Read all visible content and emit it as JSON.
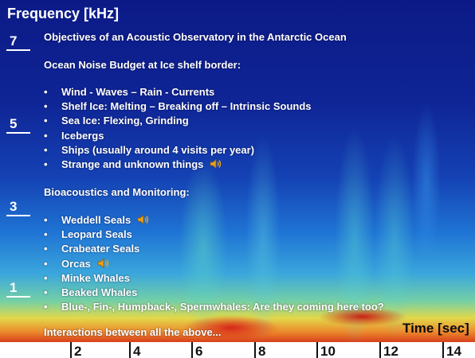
{
  "axes": {
    "y_title": "Frequency [kHz]",
    "y_ticks": [
      "7",
      "5",
      "3",
      "1"
    ],
    "x_title": "Time [sec]",
    "x_ticks": [
      "2",
      "4",
      "6",
      "8",
      "10",
      "12",
      "14"
    ]
  },
  "content": {
    "heading": "Objectives of an Acoustic Observatory in the Antarctic Ocean",
    "noise_heading": "Ocean Noise Budget at Ice shelf border:",
    "noise_items": [
      {
        "bullet": "•",
        "text": "Wind - Waves – Rain - Currents",
        "sound": false
      },
      {
        "bullet": "•",
        "text": "Shelf Ice: Melting – Breaking off – Intrinsic Sounds",
        "sound": false
      },
      {
        "bullet": "•",
        "text": "Sea Ice: Flexing, Grinding",
        "sound": false
      },
      {
        "bullet": "•",
        "text": "Icebergs",
        "sound": false
      },
      {
        "bullet": "•",
        "text": "Ships (usually around 4 visits per year)",
        "sound": false
      },
      {
        "bullet": "•",
        "text": "Strange and unknown things",
        "sound": true
      }
    ],
    "bio_heading": "Bioacoustics and Monitoring:",
    "bio_items": [
      {
        "bullet": "•",
        "text": "Weddell Seals",
        "sound": true
      },
      {
        "bullet": "•",
        "text": "Leopard Seals",
        "sound": false
      },
      {
        "bullet": "•",
        "text": "Crabeater Seals",
        "sound": false
      },
      {
        "bullet": "•",
        "text": "Orcas",
        "sound": true
      },
      {
        "bullet": "•",
        "text": "Minke Whales",
        "sound": false
      },
      {
        "bullet": "•",
        "text": "Beaked Whales",
        "sound": false
      },
      {
        "bullet": "•",
        "text": "Blue-, Fin-, Humpback-, Spermwhales: Are they coming here too?",
        "sound": false
      }
    ],
    "footer": "Interactions between all the above..."
  },
  "icons": {
    "speaker": "speaker-sound-icon"
  },
  "colors": {
    "spectrogram_background": "#0f2596",
    "text": "#ffffff",
    "speaker": "#e8a21e"
  }
}
